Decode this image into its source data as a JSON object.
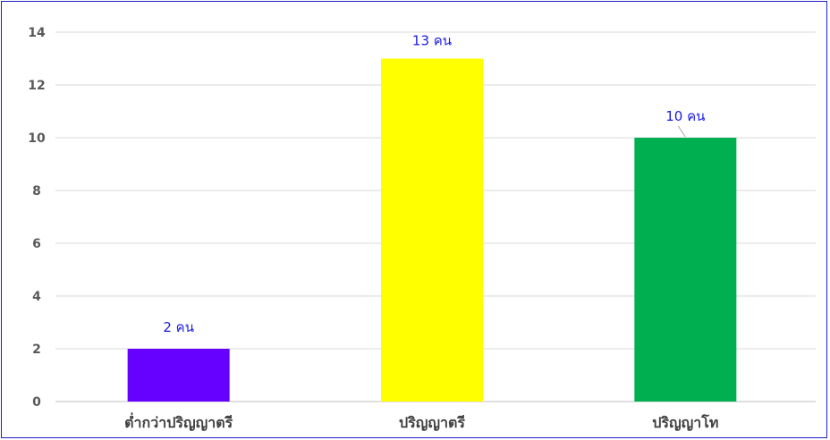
{
  "chart_data": {
    "type": "bar",
    "categories": [
      "ต่ำกว่าปริญญาตรี",
      "ปริญญาตรี",
      "ปริญญาโท"
    ],
    "values": [
      2,
      13,
      10
    ],
    "data_labels": [
      "2 คน",
      "13 คน",
      "10 คน"
    ],
    "bar_colors": [
      "#6600ff",
      "#ffff00",
      "#00b050"
    ],
    "ylim": [
      0,
      14
    ],
    "yticks": [
      0,
      2,
      4,
      6,
      8,
      10,
      12,
      14
    ],
    "grid": true,
    "legend": "none",
    "title": "",
    "xlabel": "",
    "ylabel": ""
  }
}
